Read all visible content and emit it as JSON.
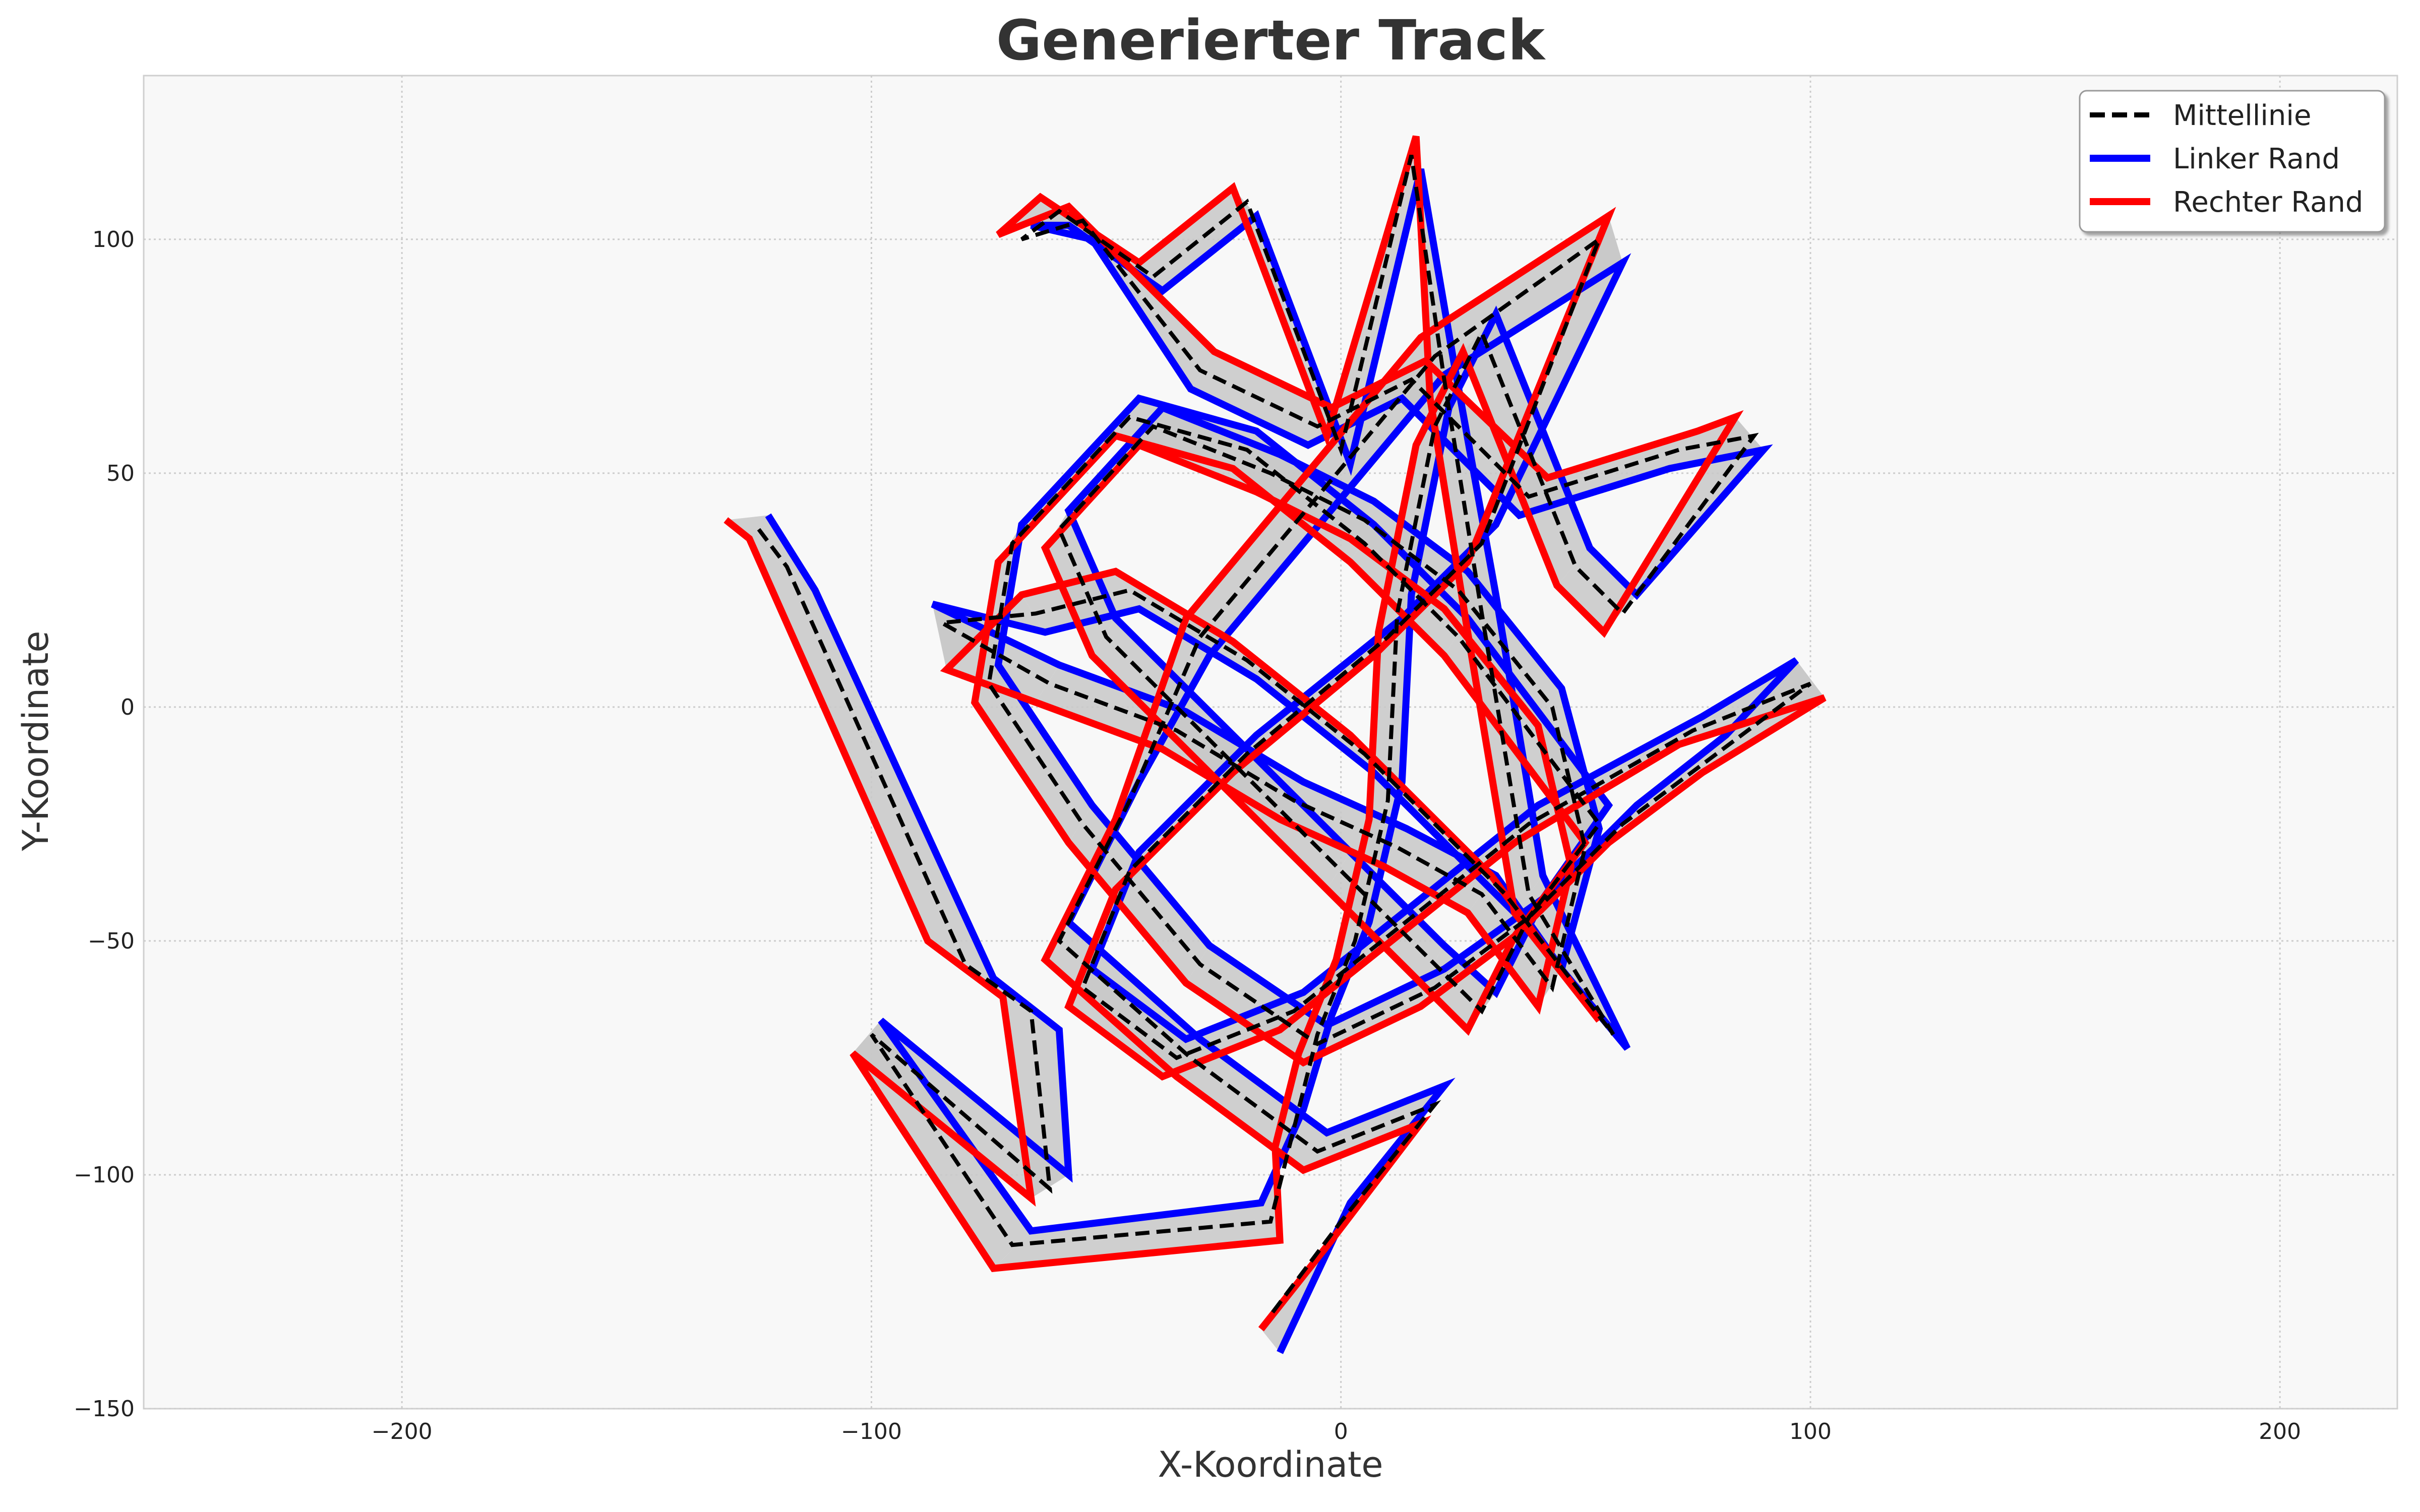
{
  "chart_data": {
    "type": "line",
    "title": "Generierter Track",
    "xlabel": "X-Koordinate",
    "ylabel": "Y-Koordinate",
    "xlim": [
      -255,
      225
    ],
    "ylim": [
      -150,
      135
    ],
    "xticks": [
      -200,
      -100,
      0,
      100,
      200
    ],
    "yticks": [
      -150,
      -100,
      -50,
      0,
      50,
      100
    ],
    "xtick_labels": [
      "−200",
      "−100",
      "0",
      "100",
      "200"
    ],
    "ytick_labels": [
      "−150",
      "−100",
      "−50",
      "0",
      "50",
      "100"
    ],
    "grid": true,
    "legend_position": "top-right",
    "colors": {
      "centerline": "#000000",
      "left": "#0000ff",
      "right": "#ff0000",
      "track_fill": "#c8c8c8",
      "plot_bg": "#f8f8f8"
    },
    "series": [
      {
        "name": "Mittellinie",
        "style": "dashed",
        "x": [
          -124,
          -118,
          -80,
          -66,
          -62,
          -100,
          -70,
          -15,
          -10,
          -5,
          3,
          10,
          12,
          20,
          30,
          50,
          60,
          88,
          72,
          40,
          15,
          -5,
          -30,
          -55,
          -68,
          -60,
          -40,
          -20,
          0,
          15,
          22,
          30,
          40,
          58,
          35,
          5,
          -20,
          -45,
          -65,
          -85,
          -62,
          -35,
          -10,
          12,
          30,
          45,
          52,
          45,
          25,
          5,
          -15,
          -40,
          -60,
          -50,
          -25,
          0,
          20,
          30,
          40,
          55,
          40,
          25,
          5,
          -20,
          -45,
          -70,
          -75,
          -55,
          -30,
          -5,
          20,
          40,
          60,
          80,
          100,
          75,
          40,
          15,
          -10,
          -35,
          -55,
          -45,
          -20,
          10,
          30,
          55,
          20,
          -5,
          -30,
          -45,
          -60,
          -32,
          -5,
          20,
          0,
          -15
        ],
        "y": [
          38,
          30,
          -55,
          -65,
          -103,
          -70,
          -115,
          -110,
          -90,
          -70,
          -50,
          -20,
          20,
          60,
          80,
          30,
          20,
          58,
          55,
          45,
          70,
          60,
          72,
          104,
          100,
          106,
          92,
          108,
          55,
          118,
          70,
          20,
          -40,
          -70,
          -40,
          -10,
          10,
          25,
          20,
          18,
          5,
          -5,
          -20,
          -30,
          -40,
          -60,
          -30,
          0,
          25,
          40,
          50,
          60,
          38,
          15,
          -10,
          -35,
          -55,
          -65,
          -45,
          -25,
          -5,
          15,
          35,
          55,
          62,
          35,
          5,
          -25,
          -55,
          -72,
          -60,
          -45,
          -25,
          -10,
          5,
          -5,
          -25,
          -45,
          -65,
          -75,
          -60,
          -35,
          -10,
          15,
          35,
          100,
          75,
          45,
          15,
          -20,
          -50,
          -75,
          -95,
          -85,
          -110,
          -130
        ]
      },
      {
        "name": "Linker Rand",
        "style": "solid",
        "x": [
          -122,
          -112,
          -74,
          -60,
          -58,
          -98,
          -66,
          -17,
          -8,
          -2,
          6,
          13,
          15,
          23,
          33,
          53,
          63,
          90,
          70,
          38,
          13,
          -7,
          -32,
          -53,
          -66,
          -58,
          -38,
          -18,
          2,
          17,
          24,
          33,
          43,
          61,
          37,
          7,
          -18,
          -43,
          -63,
          -87,
          -60,
          -33,
          -8,
          14,
          33,
          47,
          55,
          47,
          27,
          7,
          -13,
          -38,
          -58,
          -48,
          -23,
          2,
          22,
          33,
          43,
          57,
          42,
          27,
          7,
          -18,
          -43,
          -68,
          -73,
          -53,
          -28,
          -3,
          22,
          43,
          63,
          82,
          97,
          77,
          42,
          17,
          -8,
          -33,
          -53,
          -43,
          -18,
          13,
          33,
          60,
          22,
          -3,
          -28,
          -43,
          -58,
          -30,
          -3,
          22,
          2,
          -13
        ],
        "y": [
          41,
          25,
          -58,
          -69,
          -100,
          -67,
          -112,
          -106,
          -86,
          -66,
          -46,
          -16,
          24,
          64,
          84,
          34,
          24,
          55,
          51,
          41,
          66,
          56,
          68,
          100,
          103,
          103,
          89,
          105,
          52,
          115,
          74,
          24,
          -36,
          -73,
          -44,
          -14,
          6,
          21,
          16,
          22,
          9,
          -1,
          -16,
          -26,
          -36,
          -56,
          -26,
          4,
          29,
          44,
          54,
          64,
          42,
          19,
          -6,
          -31,
          -51,
          -61,
          -41,
          -21,
          -1,
          19,
          39,
          59,
          66,
          39,
          9,
          -21,
          -51,
          -68,
          -56,
          -41,
          -21,
          -6,
          10,
          -2,
          -21,
          -41,
          -61,
          -71,
          -56,
          -31,
          -6,
          19,
          39,
          95,
          71,
          41,
          11,
          -16,
          -46,
          -71,
          -91,
          -81,
          -106,
          -138
        ]
      },
      {
        "name": "Rechter Rand",
        "style": "solid",
        "x": [
          -131,
          -126,
          -88,
          -72,
          -66,
          -104,
          -74,
          -13,
          -14,
          -9,
          -1,
          6,
          8,
          16,
          26,
          46,
          56,
          84,
          76,
          44,
          18,
          -2,
          -27,
          -58,
          -73,
          -64,
          -43,
          -23,
          -3,
          16,
          19,
          27,
          37,
          55,
          32,
          2,
          -23,
          -48,
          -68,
          -84,
          -65,
          -38,
          -13,
          9,
          27,
          42,
          49,
          42,
          22,
          2,
          -18,
          -43,
          -63,
          -53,
          -28,
          -3,
          17,
          27,
          37,
          52,
          37,
          22,
          2,
          -23,
          -48,
          -73,
          -78,
          -58,
          -33,
          -8,
          17,
          37,
          57,
          77,
          103,
          72,
          37,
          12,
          -13,
          -38,
          -58,
          -48,
          -23,
          7,
          27,
          57,
          17,
          -8,
          -33,
          -48,
          -63,
          -35,
          -8,
          17,
          -2,
          -17
        ],
        "y": [
          40,
          36,
          -50,
          -62,
          -105,
          -74,
          -120,
          -114,
          -94,
          -74,
          -54,
          -24,
          16,
          56,
          76,
          26,
          16,
          62,
          59,
          49,
          74,
          64,
          76,
          107,
          101,
          109,
          95,
          111,
          58,
          122,
          66,
          16,
          -44,
          -67,
          -36,
          -6,
          14,
          29,
          24,
          8,
          1,
          -9,
          -24,
          -34,
          -44,
          -64,
          -34,
          -4,
          21,
          36,
          46,
          56,
          34,
          11,
          -14,
          -39,
          -59,
          -69,
          -49,
          -29,
          -9,
          11,
          31,
          51,
          58,
          31,
          1,
          -29,
          -59,
          -76,
          -64,
          -49,
          -29,
          -14,
          2,
          -8,
          -29,
          -49,
          -69,
          -79,
          -64,
          -39,
          -14,
          11,
          31,
          105,
          79,
          49,
          19,
          -24,
          -54,
          -79,
          -99,
          -89,
          -114,
          -133
        ]
      }
    ]
  }
}
